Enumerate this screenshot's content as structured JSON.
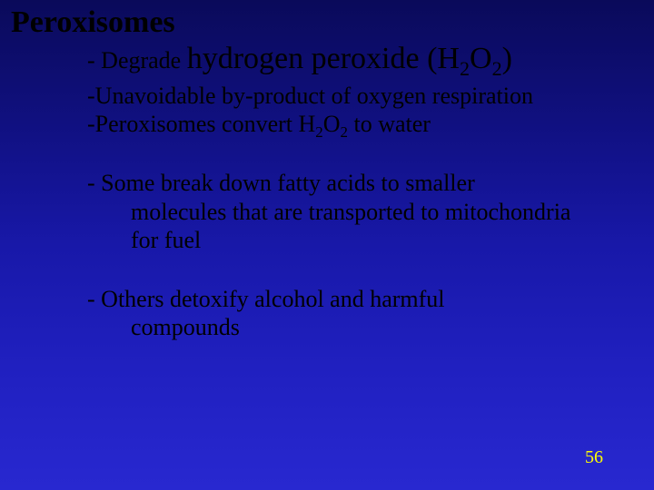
{
  "slide": {
    "background_gradient": [
      "#0a0a5a",
      "#101080",
      "#1818a8",
      "#2020c0",
      "#2828d0"
    ],
    "text_color": "#000000",
    "page_number_color": "#ffff00",
    "font_family": "Times New Roman",
    "title_fontsize": 34,
    "body_fontsize": 26,
    "page_number_fontsize": 20
  },
  "title": "Peroxisomes",
  "line1_dash": "-  ",
  "line1_small": "Degrade ",
  "line1_big_pre": "hydrogen peroxide (H",
  "line1_sub1": "2",
  "line1_big_mid": "O",
  "line1_sub2": "2",
  "line1_big_post": ")",
  "sub1_dash": "-   ",
  "sub1_text": "Unavoidable by-product of oxygen respiration",
  "sub2_dash": "-   ",
  "sub2_pre": "Peroxisomes convert H",
  "sub2_s1": "2",
  "sub2_mid": "O",
  "sub2_s2": "2",
  "sub2_post": " to water",
  "para1_dash": "-  ",
  "para1_l1": "Some break down fatty acids to smaller",
  "para1_l2": "molecules that are transported to mitochondria",
  "para1_l3": "for fuel",
  "para2_dash": "-  ",
  "para2_l1": "Others detoxify alcohol and harmful",
  "para2_l2": "compounds",
  "page_number": "56"
}
